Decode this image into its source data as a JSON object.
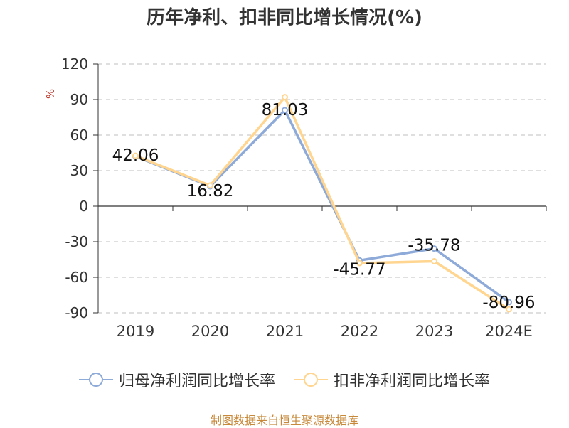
{
  "title": "历年净利、扣非同比增长情况(%)",
  "source": "制图数据来自恒生聚源数据库",
  "colors": {
    "series1": "#8eaad8",
    "series2": "#ffd58f",
    "unit": "#c0392b",
    "source": "#c8893a"
  },
  "chart_data": {
    "type": "line",
    "categories": [
      "2019",
      "2020",
      "2021",
      "2022",
      "2023",
      "2024E"
    ],
    "y_unit": "%",
    "ylim": [
      -90,
      120
    ],
    "yticks": [
      120,
      90,
      60,
      30,
      0,
      -30,
      -60,
      -90
    ],
    "grid": true,
    "legend_position": "bottom",
    "series": [
      {
        "name": "归母净利润同比增长率",
        "values": [
          42.06,
          16.82,
          81.03,
          -45.77,
          -35.78,
          -80.96
        ]
      },
      {
        "name": "扣非净利润同比增长率",
        "values": [
          42.5,
          17.5,
          92.0,
          -48.0,
          -46.5,
          -87.0
        ]
      }
    ],
    "data_labels": [
      "42.06",
      "16.82",
      "81.03",
      "-45.77",
      "-35.78",
      "-80.96"
    ]
  }
}
